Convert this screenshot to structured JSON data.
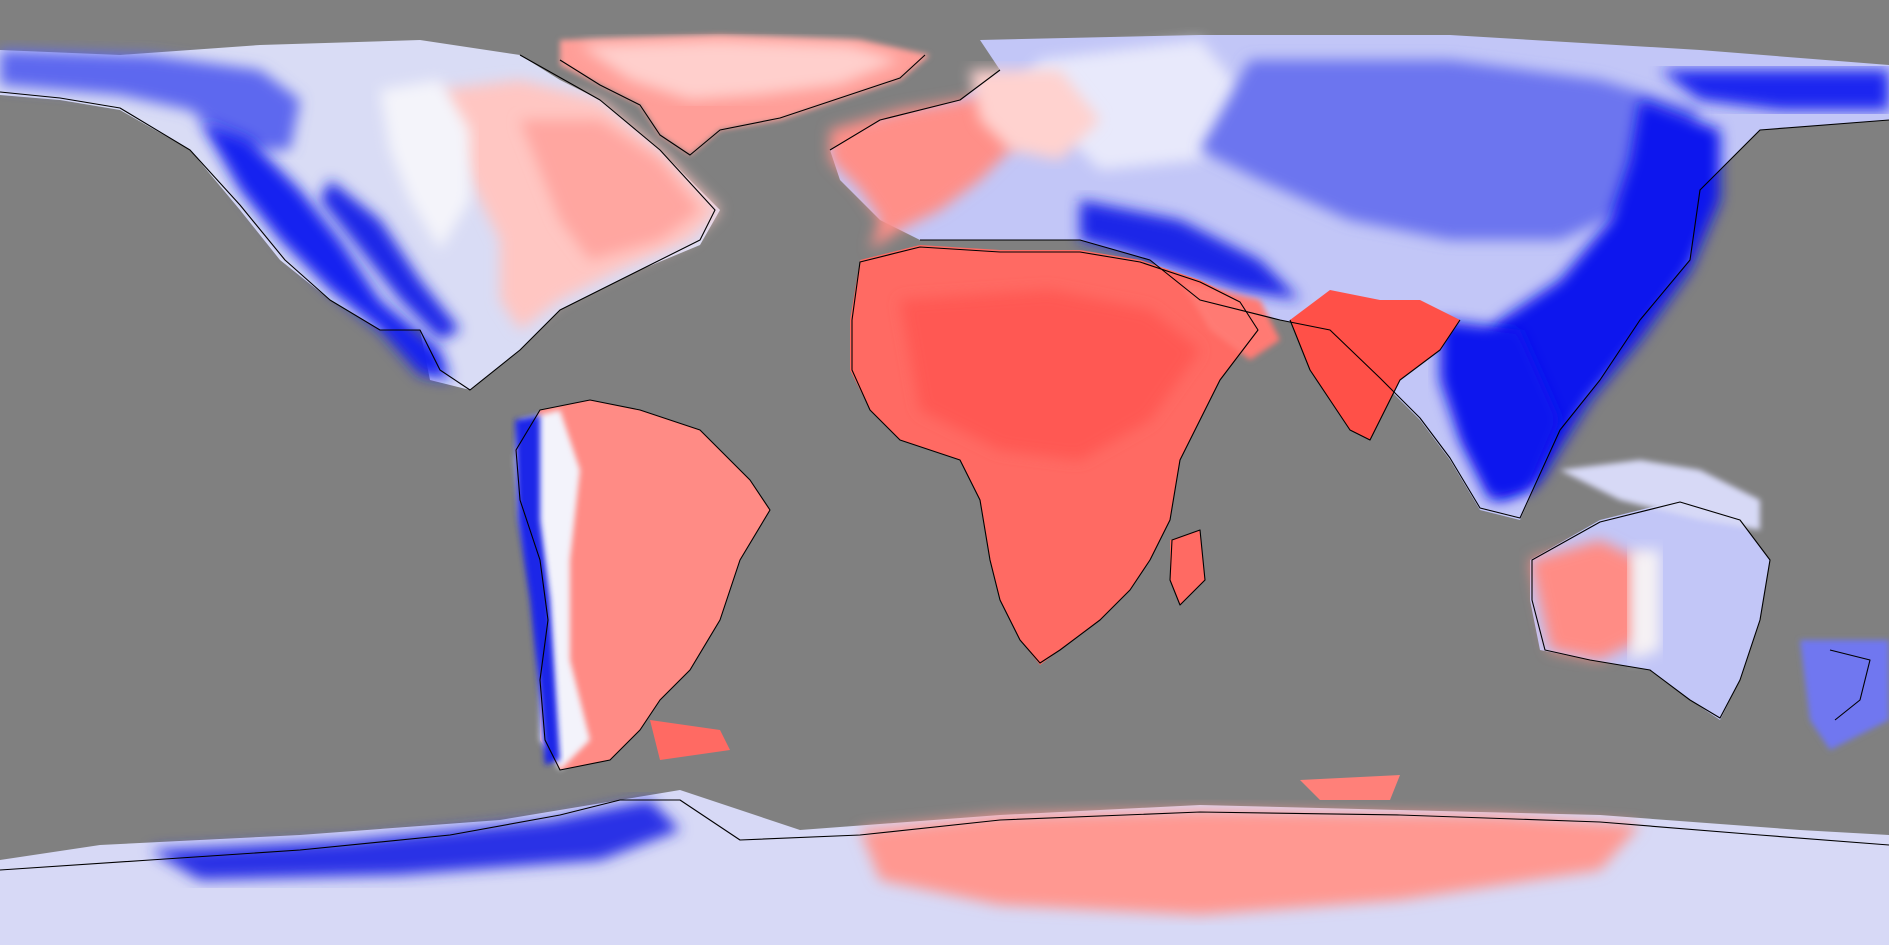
{
  "map": {
    "projection": "equirectangular",
    "ocean_color": "#808080",
    "positive_color": "#ff5050",
    "negative_color": "#0000ff",
    "neutral_color": "#ffffff",
    "coastline_color": "#000000",
    "regions": {
      "north_america_west": "strong-negative",
      "north_america_east": "weak-positive",
      "greenland": "positive",
      "south_america_andes": "negative",
      "south_america_east": "positive",
      "africa": "positive",
      "arabia": "positive",
      "india": "positive",
      "europe": "mixed",
      "asia": "negative",
      "southeast_asia": "strong-negative",
      "australia_west": "positive",
      "australia_east": "negative",
      "new_zealand": "negative",
      "antarctica_west": "negative",
      "antarctica_east": "positive"
    }
  }
}
